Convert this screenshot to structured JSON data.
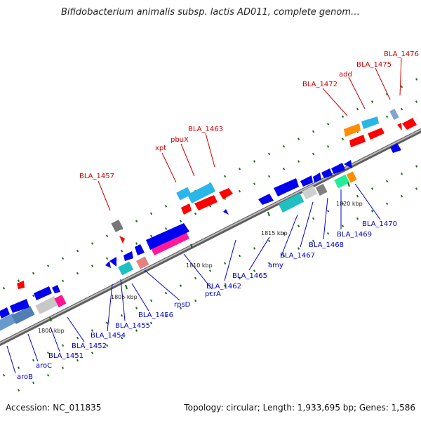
{
  "title": "Bifidobacterium animalis subsp. lactis AD011, complete genom…",
  "footer": {
    "accession": "Accession: NC_011835",
    "summary": "Topology: circular; Length: 1,933,695 bp; Genes: 1,586"
  },
  "colors": {
    "backbone": "#8a8a8a",
    "tick_dots": "#1a6b1a",
    "label_top": "#cc0000",
    "label_bottom": "#0000cc"
  },
  "kbp_markers": [
    "1800 kbp",
    "1805 kbp",
    "1810 kbp",
    "1815 kbp",
    "1820 kbp"
  ],
  "labels_top": [
    "BLA_1457",
    "xpt",
    "pbuX",
    "BLA_1463",
    "BLA_1472",
    "add",
    "BLA_1475",
    "BLA_1476"
  ],
  "labels_bottom": [
    "aroB",
    "aroC",
    "BLA_1451",
    "BLA_1452",
    "BLA_1454",
    "BLA_1455",
    "BLA_1456",
    "rpsD",
    "pcrA",
    "BLA_1462",
    "BLA_1465",
    "amy",
    "BLA_1467",
    "BLA_1468",
    "BLA_1469",
    "BLA_1470"
  ]
}
